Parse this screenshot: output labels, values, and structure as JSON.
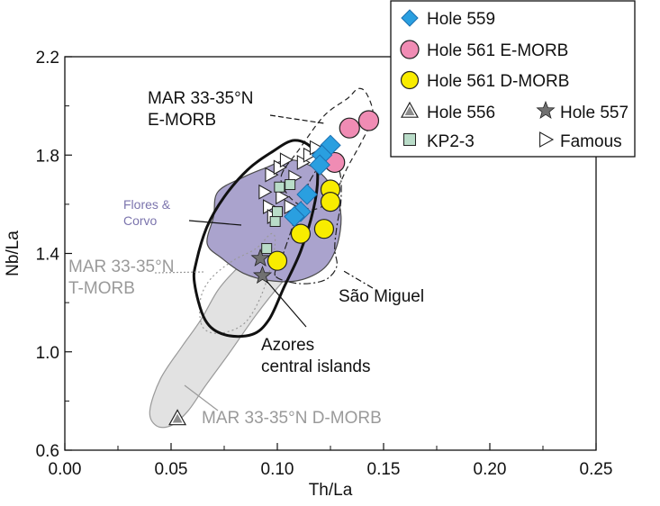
{
  "chart_data": {
    "type": "scatter",
    "title": "",
    "xlabel": "Th/La",
    "ylabel": "Nb/La",
    "xlim": [
      0,
      0.25
    ],
    "ylim": [
      0.6,
      2.2
    ],
    "x_ticks": [
      "0.00",
      "0.05",
      "0.10",
      "0.15",
      "0.20",
      "0.25"
    ],
    "y_ticks": [
      "0.6",
      "1.0",
      "1.4",
      "1.8",
      "2.2"
    ],
    "grid": false,
    "legend_position": "top-right",
    "colors": {
      "hole559": "#2a9fe0",
      "hole561e": "#f08cb4",
      "hole561d": "#f8ec00",
      "hole556": "#8c8c8c",
      "hole557": "#707070",
      "kp2_3": "#b9dcc8",
      "famous": "#ffffff",
      "flores_fill": "#aaa3cd",
      "tmorb_fill": "#e2e2e2"
    },
    "series": [
      {
        "name": "Hole 559",
        "marker": "diamond",
        "points": [
          [
            0.125,
            1.84
          ],
          [
            0.121,
            1.8
          ],
          [
            0.12,
            1.76
          ],
          [
            0.114,
            1.64
          ],
          [
            0.111,
            1.57
          ],
          [
            0.108,
            1.55
          ]
        ]
      },
      {
        "name": "Hole 561 E-MORB",
        "marker": "circle",
        "points": [
          [
            0.143,
            1.94
          ],
          [
            0.134,
            1.91
          ],
          [
            0.127,
            1.77
          ]
        ]
      },
      {
        "name": "Hole 561 D-MORB",
        "marker": "circle",
        "points": [
          [
            0.125,
            1.66
          ],
          [
            0.125,
            1.61
          ],
          [
            0.122,
            1.5
          ],
          [
            0.111,
            1.48
          ],
          [
            0.1,
            1.37
          ]
        ]
      },
      {
        "name": "Hole 556",
        "marker": "triangle",
        "points": [
          [
            0.053,
            0.73
          ]
        ]
      },
      {
        "name": "Hole 557",
        "marker": "star",
        "points": [
          [
            0.092,
            1.38
          ],
          [
            0.093,
            1.31
          ]
        ]
      },
      {
        "name": "KP2-3",
        "marker": "square",
        "points": [
          [
            0.095,
            1.42
          ],
          [
            0.099,
            1.53
          ],
          [
            0.1,
            1.57
          ],
          [
            0.101,
            1.67
          ],
          [
            0.106,
            1.68
          ]
        ]
      },
      {
        "name": "Famous",
        "marker": "triangle-right",
        "points": [
          [
            0.094,
            1.65
          ],
          [
            0.096,
            1.59
          ],
          [
            0.098,
            1.55
          ],
          [
            0.097,
            1.72
          ],
          [
            0.101,
            1.75
          ],
          [
            0.104,
            1.78
          ],
          [
            0.108,
            1.71
          ],
          [
            0.112,
            1.77
          ],
          [
            0.115,
            1.8
          ],
          [
            0.118,
            1.83
          ],
          [
            0.102,
            1.63
          ],
          [
            0.106,
            1.59
          ]
        ]
      }
    ],
    "fields": [
      {
        "label": "MAR 33-35°N E-MORB",
        "style": "dashed",
        "points": [
          [
            0.102,
            1.72
          ],
          [
            0.11,
            1.82
          ],
          [
            0.122,
            1.96
          ],
          [
            0.133,
            2.03
          ],
          [
            0.138,
            2.07
          ],
          [
            0.142,
            2.05
          ],
          [
            0.145,
            1.96
          ],
          [
            0.14,
            1.86
          ],
          [
            0.133,
            1.75
          ],
          [
            0.126,
            1.63
          ],
          [
            0.118,
            1.58
          ],
          [
            0.11,
            1.6
          ],
          [
            0.104,
            1.65
          ]
        ]
      },
      {
        "label": "Flores & Corvo",
        "style": "filled",
        "points": [
          [
            0.072,
            1.65
          ],
          [
            0.084,
            1.71
          ],
          [
            0.095,
            1.75
          ],
          [
            0.104,
            1.78
          ],
          [
            0.112,
            1.77
          ],
          [
            0.12,
            1.73
          ],
          [
            0.127,
            1.65
          ],
          [
            0.13,
            1.55
          ],
          [
            0.128,
            1.43
          ],
          [
            0.122,
            1.34
          ],
          [
            0.11,
            1.29
          ],
          [
            0.096,
            1.29
          ],
          [
            0.084,
            1.32
          ],
          [
            0.074,
            1.38
          ],
          [
            0.067,
            1.44
          ],
          [
            0.07,
            1.55
          ]
        ]
      },
      {
        "label": "MAR 33-35°N T-MORB",
        "style": "dotted",
        "points": [
          [
            0.064,
            1.12
          ],
          [
            0.064,
            1.22
          ],
          [
            0.069,
            1.3
          ],
          [
            0.079,
            1.37
          ],
          [
            0.09,
            1.42
          ],
          [
            0.097,
            1.48
          ],
          [
            0.099,
            1.45
          ],
          [
            0.097,
            1.35
          ],
          [
            0.092,
            1.22
          ],
          [
            0.085,
            1.12
          ],
          [
            0.076,
            1.08
          ],
          [
            0.068,
            1.08
          ]
        ]
      },
      {
        "label": "MAR 33-35°N D-MORB",
        "style": "light-filled",
        "points": [
          [
            0.043,
            0.7
          ],
          [
            0.04,
            0.76
          ],
          [
            0.045,
            0.89
          ],
          [
            0.055,
            1.02
          ],
          [
            0.064,
            1.13
          ],
          [
            0.072,
            1.25
          ],
          [
            0.08,
            1.33
          ],
          [
            0.09,
            1.41
          ],
          [
            0.1,
            1.47
          ],
          [
            0.112,
            1.49
          ],
          [
            0.117,
            1.46
          ],
          [
            0.113,
            1.38
          ],
          [
            0.102,
            1.28
          ],
          [
            0.09,
            1.15
          ],
          [
            0.077,
            0.99
          ],
          [
            0.066,
            0.86
          ],
          [
            0.058,
            0.76
          ],
          [
            0.05,
            0.7
          ]
        ]
      },
      {
        "label": "Azores central islands",
        "style": "thick",
        "points": [
          [
            0.061,
            1.28
          ],
          [
            0.062,
            1.37
          ],
          [
            0.067,
            1.51
          ],
          [
            0.075,
            1.63
          ],
          [
            0.086,
            1.74
          ],
          [
            0.097,
            1.81
          ],
          [
            0.108,
            1.86
          ],
          [
            0.117,
            1.82
          ],
          [
            0.119,
            1.71
          ],
          [
            0.117,
            1.58
          ],
          [
            0.111,
            1.41
          ],
          [
            0.103,
            1.26
          ],
          [
            0.096,
            1.13
          ],
          [
            0.088,
            1.07
          ],
          [
            0.075,
            1.07
          ],
          [
            0.066,
            1.13
          ]
        ]
      },
      {
        "label": "São Miguel",
        "style": "dash-dot",
        "points": [
          [
            0.099,
            1.31
          ],
          [
            0.102,
            1.38
          ],
          [
            0.106,
            1.48
          ],
          [
            0.11,
            1.58
          ],
          [
            0.115,
            1.69
          ],
          [
            0.122,
            1.77
          ],
          [
            0.129,
            1.74
          ],
          [
            0.13,
            1.62
          ],
          [
            0.128,
            1.51
          ],
          [
            0.127,
            1.42
          ],
          [
            0.128,
            1.35
          ],
          [
            0.124,
            1.3
          ],
          [
            0.117,
            1.28
          ],
          [
            0.108,
            1.28
          ]
        ]
      }
    ],
    "annotations": [
      {
        "lines": [
          "MAR 33-35°N",
          "E-MORB"
        ]
      },
      {
        "lines": [
          "Flores &",
          "Corvo"
        ]
      },
      {
        "lines": [
          "MAR 33-35°N",
          "T-MORB"
        ]
      },
      {
        "lines": [
          "São Miguel"
        ]
      },
      {
        "lines": [
          "Azores",
          "central islands"
        ]
      },
      {
        "lines": [
          "MAR 33-35°N D-MORB"
        ]
      }
    ]
  }
}
